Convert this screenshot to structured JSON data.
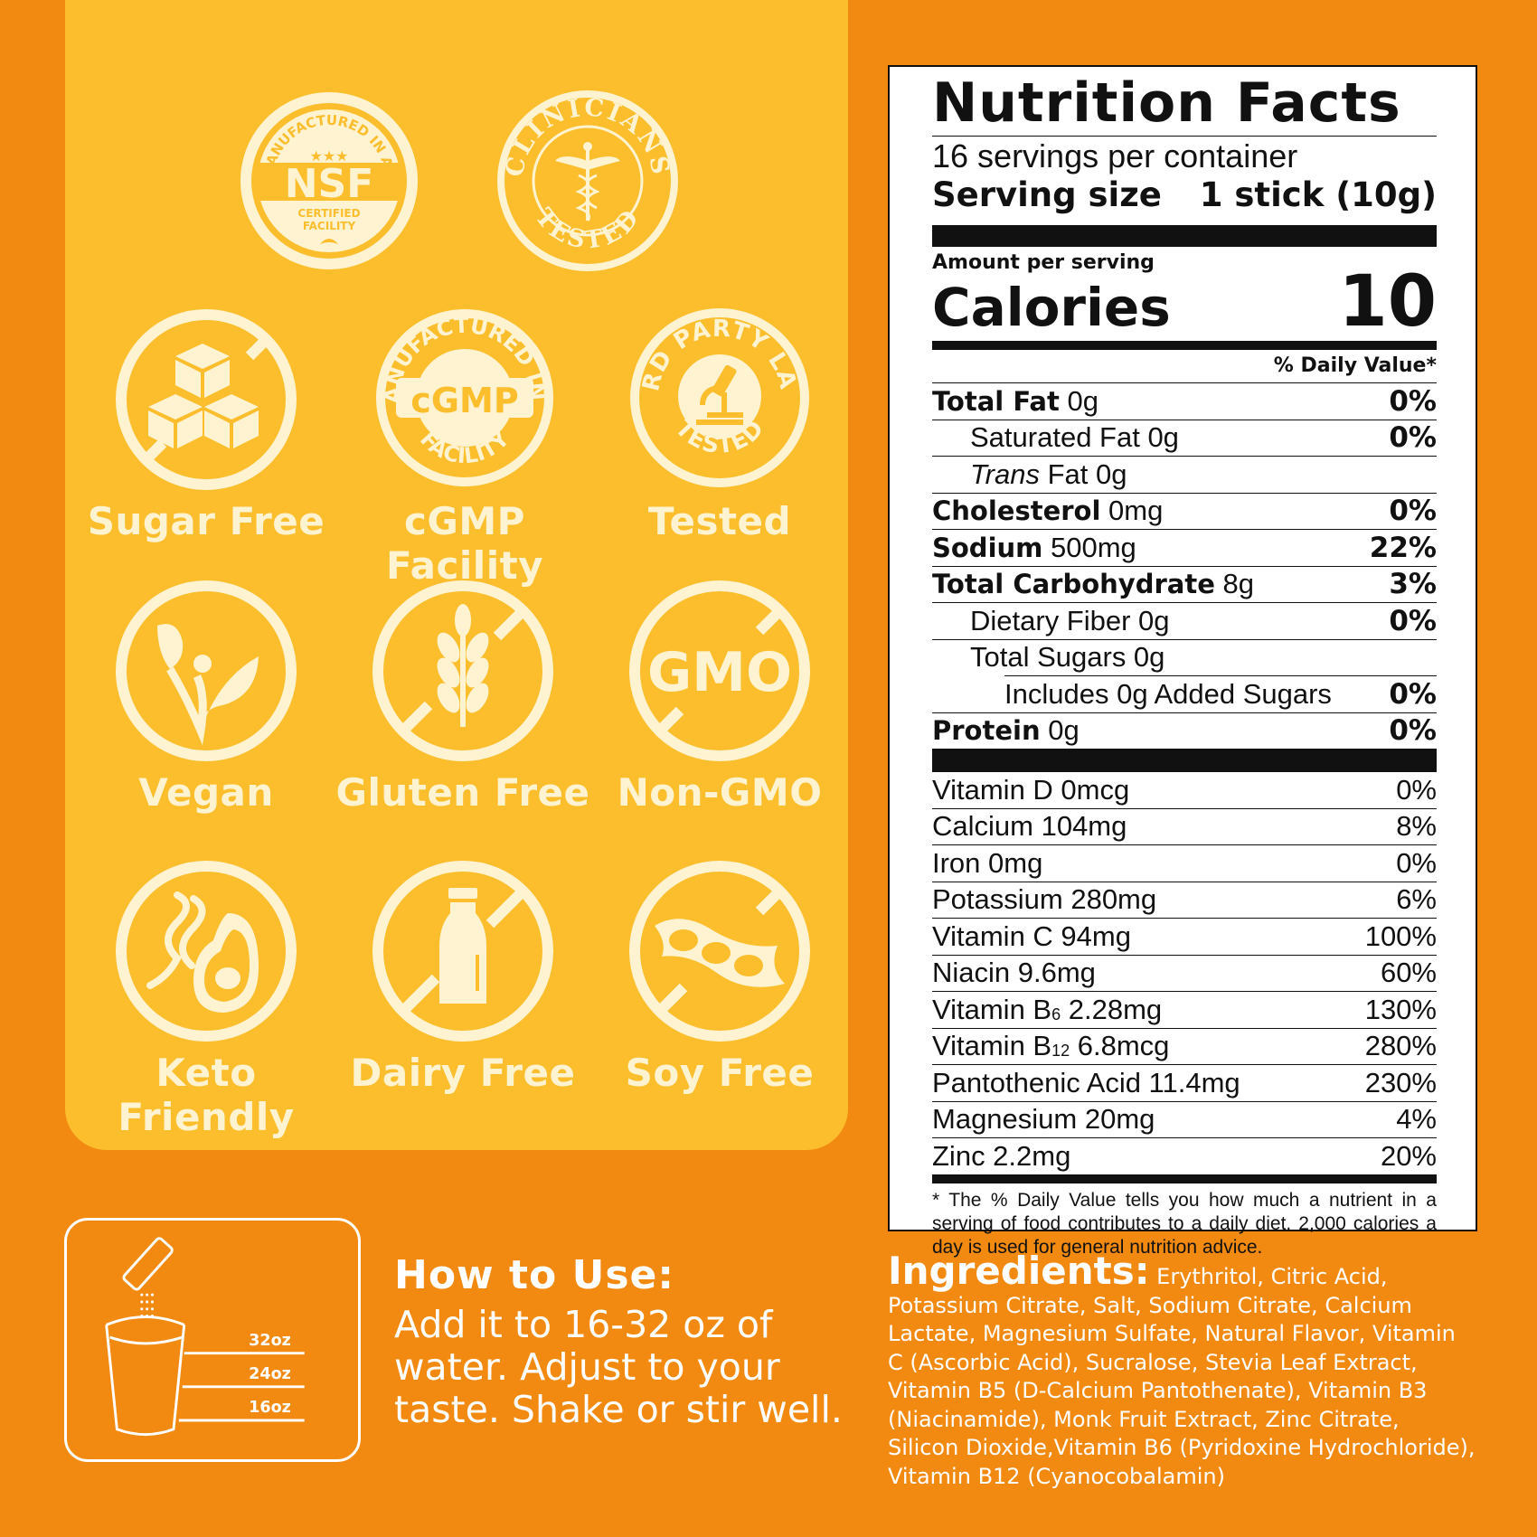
{
  "badges": {
    "nsf": {
      "arc_text": "MANUFACTURED IN AN",
      "stars": "★★★",
      "main": "NSF",
      "sub1": "CERTIFIED",
      "sub2": "FACILITY"
    },
    "clinicians": {
      "top": "CLINICIANS",
      "bottom": "TESTED"
    },
    "cgmp": {
      "arc_top": "MANUFACTURED IN A",
      "main": "cGMP",
      "arc_bottom": "FACILITY"
    },
    "lab": {
      "arc_top": "3RD PARTY LAB",
      "arc_bottom": "TESTED"
    },
    "gmo": {
      "main": "GMO"
    }
  },
  "labels": {
    "sugar_free": "Sugar Free",
    "cgmp": "cGMP Facility",
    "tested": "Tested",
    "vegan": "Vegan",
    "gluten_free": "Gluten Free",
    "non_gmo": "Non-GMO",
    "keto": "Keto Friendly",
    "dairy_free": "Dairy Free",
    "soy_free": "Soy Free"
  },
  "nutrition": {
    "title": "Nutrition Facts",
    "servings": "16 servings per container",
    "serving_size_label": "Serving size",
    "serving_size_value": "1 stick (10g)",
    "amount_per_serving": "Amount per serving",
    "calories_label": "Calories",
    "calories_value": "10",
    "dv_header": "% Daily Value*",
    "rows": [
      {
        "bold": "Total Fat",
        "amt": "0g",
        "pct": "0%"
      },
      {
        "bold": "",
        "amt": "Saturated Fat 0g",
        "pct": "0%"
      },
      {
        "italic": "Trans",
        "amt": "Fat 0g",
        "pct": ""
      },
      {
        "bold": "Cholesterol",
        "amt": "0mg",
        "pct": "0%"
      },
      {
        "bold": "Sodium",
        "amt": "500mg",
        "pct": "22%"
      },
      {
        "bold": "Total Carbohydrate",
        "amt": "8g",
        "pct": "3%"
      },
      {
        "bold": "",
        "amt": "Dietary Fiber 0g",
        "pct": "0%"
      },
      {
        "bold": "",
        "amt": "Total Sugars 0g",
        "pct": ""
      },
      {
        "bold": "",
        "amt": "Includes 0g Added Sugars",
        "pct": "0%"
      },
      {
        "bold": "Protein",
        "amt": "0g",
        "pct": "0%"
      }
    ],
    "vitamins": [
      {
        "name": "Vitamin D 0mcg",
        "pct": "0%"
      },
      {
        "name": "Calcium 104mg",
        "pct": "8%"
      },
      {
        "name": "Iron 0mg",
        "pct": "0%"
      },
      {
        "name": "Potassium 280mg",
        "pct": "6%"
      },
      {
        "name": "Vitamin C 94mg",
        "pct": "100%"
      },
      {
        "name": "Niacin 9.6mg",
        "pct": "60%"
      },
      {
        "pre": "Vitamin B",
        "sub": "6",
        "post": " 2.28mg",
        "pct": "130%"
      },
      {
        "pre": "Vitamin B",
        "sub": "12",
        "post": " 6.8mcg",
        "pct": "280%"
      },
      {
        "name": "Pantothenic Acid 11.4mg",
        "pct": "230%"
      },
      {
        "name": "Magnesium 20mg",
        "pct": "4%"
      },
      {
        "name": "Zinc 2.2mg",
        "pct": "20%"
      }
    ],
    "footnote": "* The % Daily Value tells you how much a nutrient in a serving of food contributes to a daily diet. 2,000 calories a day is used for general nutrition advice."
  },
  "how_to_use": {
    "title": "How to Use:",
    "text": "Add it to 16-32 oz of water. Adjust to your taste. Shake or stir well.",
    "marks": [
      "32oz",
      "24oz",
      "16oz"
    ]
  },
  "ingredients": {
    "title": "Ingredients:",
    "text": "Erythritol, Citric Acid, Potassium Citrate, Salt, Sodium Citrate, Calcium Lactate, Magnesium Sulfate, Natural Flavor, Vitamin C (Ascorbic Acid), Sucralose, Stevia Leaf Extract,  Vitamin B5 (D-Calcium Pantothenate), Vitamin B3 (Niacinamide), Monk Fruit Extract, Zinc Citrate, Silicon Dioxide,Vitamin B6 (Pyridoxine Hydrochloride), Vitamin B12 (Cyanocobalamin)"
  },
  "colors": {
    "background": "#f28a12",
    "panel": "#fcbe2c",
    "cream": "#fff3d2"
  }
}
